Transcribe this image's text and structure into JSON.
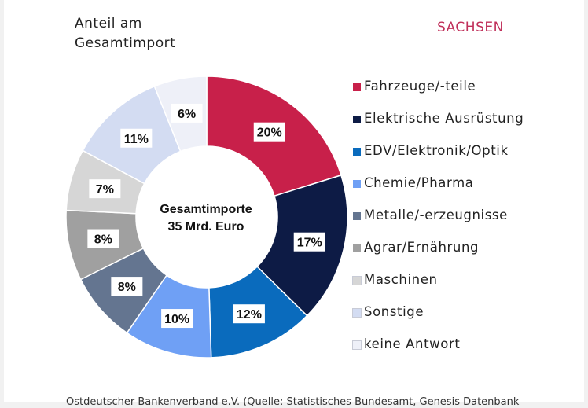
{
  "header": {
    "subtitle": "Anteil am\nGesamtimport",
    "region": "SACHSEN"
  },
  "footer": {
    "source": "Ostdeutscher Bankenverband e.V. (Quelle: Statistisches Bundesamt, Genesis Datenbank"
  },
  "chart_data": {
    "type": "pie",
    "variant": "donut",
    "center_label": [
      "Gesamtimporte",
      "35 Mrd. Euro"
    ],
    "categories": [
      "Fahrzeuge/-teile",
      "Elektrische Ausrüstung",
      "EDV/Elektronik/Optik",
      "Chemie/Pharma",
      "Metalle/-erzeugnisse",
      "Agrar/Ernährung",
      "Maschinen",
      "Sonstige",
      "keine Antwort"
    ],
    "values": [
      20,
      17,
      12,
      10,
      8,
      8,
      7,
      11,
      6
    ],
    "data_labels": [
      "20%",
      "17%",
      "12%",
      "10%",
      "8%",
      "8%",
      "7%",
      "11%",
      "6%"
    ],
    "colors": [
      "#c8204a",
      "#0d1b45",
      "#0a6bbd",
      "#6fa0f5",
      "#647590",
      "#a0a0a0",
      "#d6d6d6",
      "#d3dcf2",
      "#eef0f8"
    ],
    "legend_position": "right",
    "start": "top, clockwise"
  }
}
